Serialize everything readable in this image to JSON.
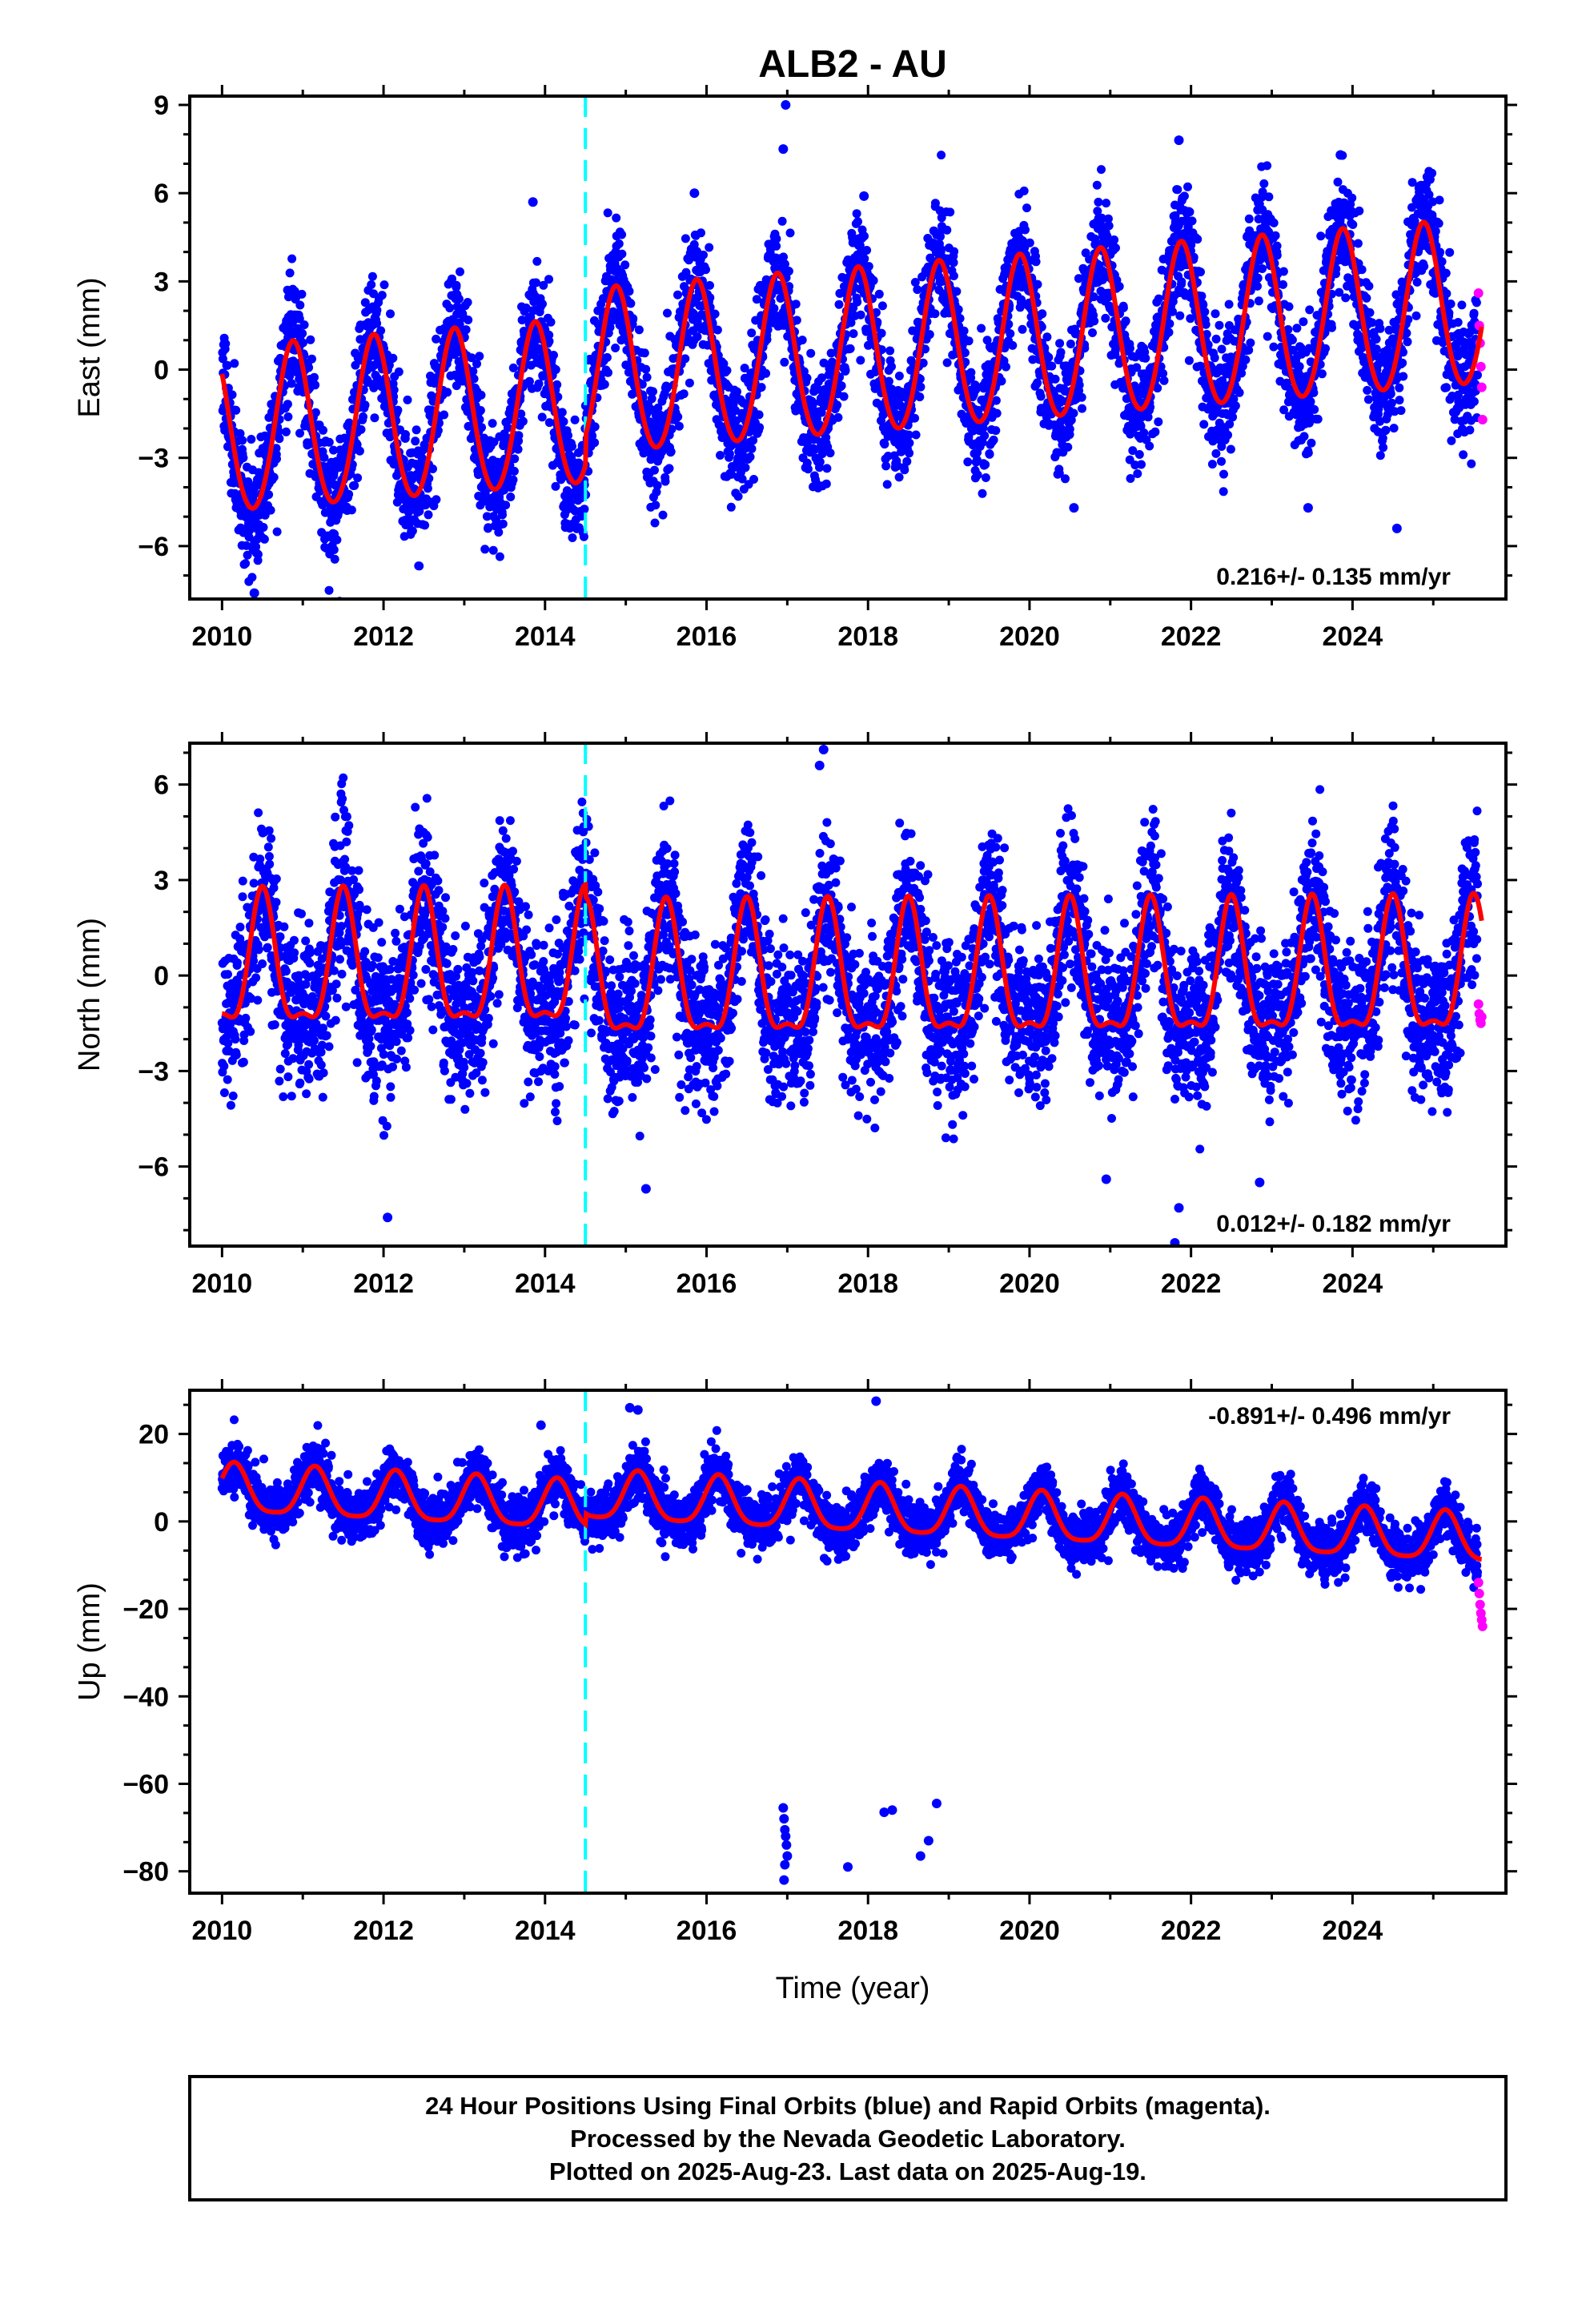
{
  "title": "ALB2 - AU",
  "xlabel": "Time (year)",
  "colors": {
    "final_orbits": "#0000ff",
    "rapid_orbits": "#ff00ff",
    "model": "#ff0000",
    "event_line": "#00ffff",
    "frame": "#000000"
  },
  "footer": {
    "line1": "24 Hour Positions Using Final Orbits (blue) and Rapid Orbits (magenta).",
    "line2": "Processed by the Nevada Geodetic Laboratory.",
    "line3": "Plotted on 2025-Aug-23. Last data on 2025-Aug-19."
  },
  "chart_data": [
    {
      "type": "scatter",
      "panel": "east",
      "ylabel": "East (mm)",
      "xlim": [
        2009.6,
        2025.9
      ],
      "ylim": [
        -7.8,
        9.3
      ],
      "xticks": [
        2010,
        2012,
        2014,
        2016,
        2018,
        2020,
        2022,
        2024
      ],
      "yticks": [
        -6,
        -3,
        0,
        3,
        6,
        9
      ],
      "rate_text": "0.216+/- 0.135 mm/yr",
      "event_line_x": 2014.5,
      "model": {
        "offset": -2.2,
        "trend_mm_per_yr": 0.216,
        "jump_at": 2014.5,
        "jump": 1.0,
        "amp": 2.8,
        "peak_phase": 0.88,
        "amp2": 0.2
      },
      "scatter_sigma": 1.0,
      "outliers": [
        [
          2016.98,
          9.0
        ],
        [
          2016.95,
          7.5
        ],
        [
          2013.85,
          5.7
        ],
        [
          2015.85,
          6.0
        ],
        [
          2017.95,
          5.9
        ],
        [
          2021.85,
          7.8
        ],
        [
          2023.85,
          7.3
        ],
        [
          2020.55,
          -4.7
        ],
        [
          2023.45,
          -4.7
        ],
        [
          2024.55,
          -5.4
        ],
        [
          2010.4,
          -7.6
        ]
      ],
      "rapid_points": [
        [
          2025.56,
          2.6
        ],
        [
          2025.57,
          1.5
        ],
        [
          2025.58,
          0.9
        ],
        [
          2025.59,
          0.1
        ],
        [
          2025.6,
          -0.6
        ],
        [
          2025.61,
          -1.7
        ]
      ]
    },
    {
      "type": "scatter",
      "panel": "north",
      "ylabel": "North (mm)",
      "xlim": [
        2009.6,
        2025.9
      ],
      "ylim": [
        -8.5,
        7.3
      ],
      "xticks": [
        2010,
        2012,
        2014,
        2016,
        2018,
        2020,
        2022,
        2024
      ],
      "yticks": [
        -6,
        -3,
        0,
        3,
        6
      ],
      "rate_text": "0.012+/- 0.182 mm/yr",
      "event_line_x": 2014.5,
      "model": {
        "offset": 0.1,
        "trend_mm_per_yr": 0.012,
        "jump_at": 2014.5,
        "jump": -0.4,
        "amp": 2.0,
        "peak_phase": 0.5,
        "amp2": 0.7
      },
      "scatter_sigma": 1.25,
      "outliers": [
        [
          2017.45,
          7.1
        ],
        [
          2017.4,
          6.6
        ],
        [
          2012.05,
          -7.6
        ],
        [
          2015.25,
          -6.7
        ],
        [
          2020.95,
          -6.4
        ],
        [
          2021.85,
          -7.3
        ],
        [
          2021.8,
          -8.4
        ],
        [
          2022.85,
          -6.5
        ]
      ],
      "rapid_points": [
        [
          2025.56,
          -0.9
        ],
        [
          2025.57,
          -1.2
        ],
        [
          2025.58,
          -1.4
        ],
        [
          2025.59,
          -1.5
        ],
        [
          2025.6,
          -1.3
        ]
      ]
    },
    {
      "type": "scatter",
      "panel": "up",
      "ylabel": "Up (mm)",
      "xlim": [
        2009.6,
        2025.9
      ],
      "ylim": [
        -85,
        30
      ],
      "xticks": [
        2010,
        2012,
        2014,
        2016,
        2018,
        2020,
        2022,
        2024
      ],
      "yticks": [
        -80,
        -60,
        -40,
        -20,
        0,
        20
      ],
      "rate_text": "-0.891+/- 0.496 mm/yr",
      "event_line_x": 2014.5,
      "model": {
        "offset": 7.0,
        "trend_mm_per_yr": -0.891,
        "jump_at": 2014.5,
        "jump": 2.5,
        "amp": 5.5,
        "peak_phase": 0.15,
        "amp2": 1.2
      },
      "scatter_sigma": 3.0,
      "outliers": [
        [
          2015.05,
          26.0
        ],
        [
          2015.15,
          25.5
        ],
        [
          2018.1,
          27.5
        ],
        [
          2013.95,
          22.0
        ],
        [
          2016.95,
          -65.5
        ],
        [
          2016.96,
          -68.0
        ],
        [
          2016.97,
          -70.5
        ],
        [
          2016.98,
          -72.0
        ],
        [
          2016.99,
          -74.0
        ],
        [
          2017.0,
          -76.5
        ],
        [
          2016.97,
          -78.5
        ],
        [
          2016.96,
          -82.0
        ],
        [
          2018.2,
          -66.5
        ],
        [
          2018.3,
          -66.0
        ],
        [
          2017.75,
          -79.0
        ],
        [
          2018.65,
          -76.5
        ],
        [
          2018.75,
          -73.0
        ],
        [
          2018.85,
          -64.5
        ]
      ],
      "rapid_points": [
        [
          2025.56,
          -14.0
        ],
        [
          2025.57,
          -16.5
        ],
        [
          2025.58,
          -19.0
        ],
        [
          2025.59,
          -21.0
        ],
        [
          2025.6,
          -22.5
        ],
        [
          2025.61,
          -24.0
        ]
      ]
    }
  ]
}
